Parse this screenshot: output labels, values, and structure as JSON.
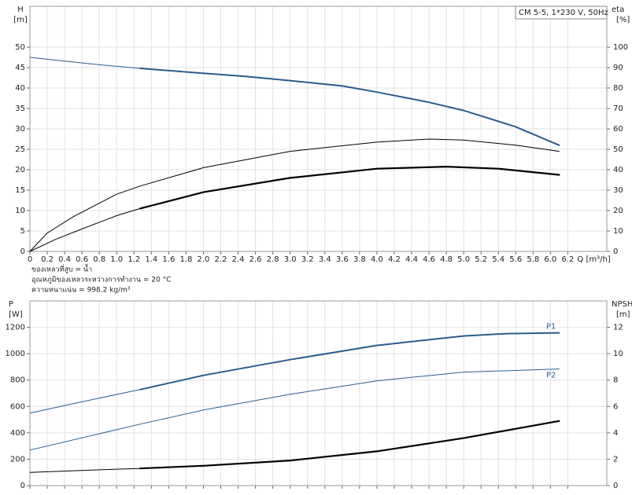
{
  "chart_data": [
    {
      "type": "line",
      "legend_text": "CM 5-5, 1*230 V, 50Hz",
      "y_label": "H",
      "y_unit": "[m]",
      "y2_label": "eta",
      "y2_unit": "[%]",
      "x_label": "Q [m³/h]",
      "notes": [
        "ของเหลวที่สูบ = น้ำ",
        "อุณหภูมิของเหลวระหว่างการทำงาน = 20 °C",
        "ความหนาแน่น = 998.2 kg/m³"
      ],
      "grid": true,
      "xlim": [
        0,
        6.65
      ],
      "ylim": [
        0,
        60
      ],
      "y2lim": [
        0,
        120
      ],
      "xticks": [
        0,
        0.2,
        0.4,
        0.6,
        0.8,
        {
          "value": 1,
          "label": "1.0"
        },
        1.2,
        1.4,
        1.6,
        1.8,
        {
          "value": 2,
          "label": "2.0"
        },
        2.2,
        2.4,
        2.6,
        2.8,
        {
          "value": 3,
          "label": "3.0"
        },
        3.2,
        3.4,
        3.6,
        3.8,
        {
          "value": 4,
          "label": "4.0"
        },
        4.2,
        4.4,
        4.6,
        4.8,
        {
          "value": 5,
          "label": "5.0"
        },
        5.2,
        5.4,
        5.6,
        5.8,
        {
          "value": 6,
          "label": "6.0"
        },
        6.2
      ],
      "yticks": [
        0,
        5,
        10,
        15,
        20,
        25,
        30,
        35,
        40,
        45,
        50
      ],
      "y2ticks": [
        0,
        10,
        20,
        30,
        40,
        50,
        60,
        70,
        80,
        90,
        100
      ],
      "series": [
        {
          "color": "#2b5c8c",
          "width": 1,
          "axis": "y",
          "x": [
            0,
            0.4,
            0.8,
            1.27
          ],
          "values": [
            47.5,
            46.6,
            45.7,
            44.8
          ]
        },
        {
          "color": "#2b5c8c",
          "width": 2,
          "axis": "y",
          "x": [
            1.27,
            2,
            2.5,
            3,
            3.6,
            4,
            4.6,
            5,
            5.6,
            6.1
          ],
          "values": [
            44.8,
            43.6,
            42.8,
            41.8,
            40.5,
            39,
            36.5,
            34.5,
            30.5,
            26
          ]
        },
        {
          "color": "#000000",
          "width": 1,
          "axis": "y2",
          "x": [
            0,
            0.2,
            0.5,
            1,
            1.27,
            2,
            3,
            4,
            4.6,
            5,
            5.6,
            6.1
          ],
          "values": [
            0,
            9,
            17,
            28,
            32,
            41,
            49,
            53.5,
            55,
            54.5,
            52,
            49
          ]
        },
        {
          "color": "#000000",
          "width": 1,
          "axis": "y2",
          "x": [
            0,
            0.3,
            0.6,
            1,
            1.27
          ],
          "values": [
            0,
            6,
            11,
            17.5,
            21
          ]
        },
        {
          "color": "#000000",
          "width": 2.2,
          "axis": "y2",
          "x": [
            1.27,
            2,
            3,
            4,
            4.8,
            5.4,
            6.1
          ],
          "values": [
            21,
            29,
            36,
            40.5,
            41.5,
            40.5,
            37.5
          ]
        }
      ]
    },
    {
      "type": "line",
      "y_label": "P",
      "y_unit": "[W]",
      "y2_label": "NPSH",
      "y2_unit": "[m]",
      "grid": true,
      "xlim": [
        0,
        6.65
      ],
      "ylim": [
        0,
        1400
      ],
      "y2lim": [
        0,
        14
      ],
      "yticks": [
        0,
        200,
        400,
        600,
        800,
        1000,
        1200
      ],
      "y2ticks": [
        0,
        2,
        4,
        6,
        8,
        10,
        12
      ],
      "series": [
        {
          "color": "#2b5c8c",
          "width": 1,
          "axis": "y",
          "x": [
            0,
            0.6,
            1.27
          ],
          "values": [
            550,
            635,
            728
          ]
        },
        {
          "name": "P1",
          "color": "#2b5c8c",
          "width": 2,
          "axis": "y",
          "x": [
            1.27,
            2,
            3,
            4,
            5,
            5.5,
            6.1
          ],
          "values": [
            728,
            836,
            955,
            1063,
            1134,
            1152,
            1158
          ]
        },
        {
          "name": "P2",
          "color": "#2b5c8c",
          "width": 1,
          "axis": "y",
          "x": [
            0,
            1.27,
            2,
            3,
            4,
            5,
            6.1
          ],
          "values": [
            269,
            466,
            573,
            692,
            794,
            860,
            884
          ]
        },
        {
          "color": "#000000",
          "width": 1,
          "axis": "y2",
          "x": [
            0,
            0.6,
            1.27
          ],
          "values": [
            1,
            1.15,
            1.3
          ]
        },
        {
          "color": "#000000",
          "width": 2.2,
          "axis": "y2",
          "x": [
            1.27,
            2,
            3,
            4,
            5,
            6.1
          ],
          "values": [
            1.3,
            1.5,
            1.9,
            2.6,
            3.6,
            4.9
          ]
        }
      ]
    }
  ]
}
